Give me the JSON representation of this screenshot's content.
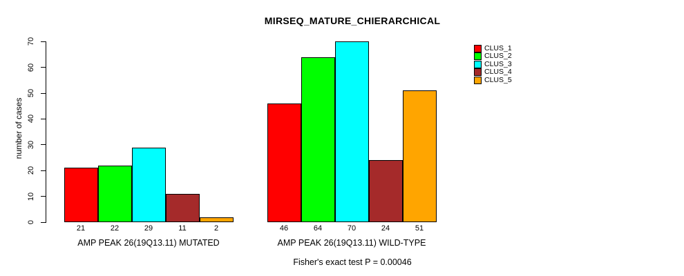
{
  "chart_data": {
    "type": "bar",
    "title": "MIRSEQ_MATURE_CHIERARCHICAL",
    "ylabel": "number of cases",
    "subtitle": "Fisher's exact test P = 0.00046",
    "ylim": [
      0,
      70
    ],
    "yticks": [
      0,
      10,
      20,
      30,
      40,
      50,
      60,
      70
    ],
    "grid": false,
    "legend_position": "top-right",
    "bar_value_labels_shown": true,
    "categories": [
      "AMP PEAK 26(19Q13.11) MUTATED",
      "AMP PEAK 26(19Q13.11) WILD-TYPE"
    ],
    "series": [
      {
        "name": "CLUS_1",
        "color": "#FF0000",
        "values": [
          21,
          46
        ]
      },
      {
        "name": "CLUS_2",
        "color": "#00FF00",
        "values": [
          22,
          64
        ]
      },
      {
        "name": "CLUS_3",
        "color": "#00FFFF",
        "values": [
          29,
          70
        ]
      },
      {
        "name": "CLUS_4",
        "color": "#A52A2A",
        "values": [
          11,
          24
        ]
      },
      {
        "name": "CLUS_5",
        "color": "#FFA500",
        "values": [
          2,
          51
        ]
      }
    ]
  }
}
